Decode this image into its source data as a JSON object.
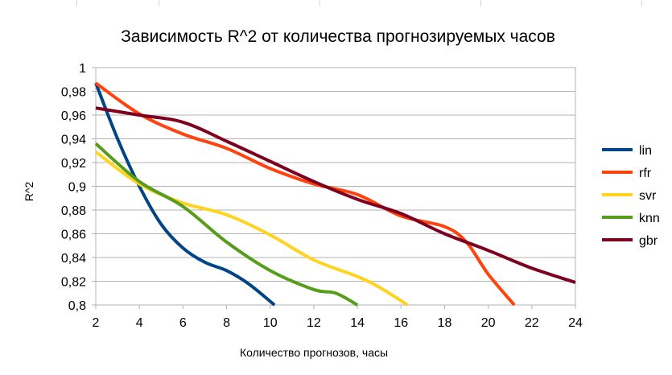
{
  "chart_data": {
    "type": "line",
    "title": "Зависимость R^2 от количества прогнозируемых часов",
    "xlabel": "Количество прогнозов, часы",
    "ylabel": "R^2",
    "xlim": [
      2,
      24
    ],
    "ylim": [
      0.8,
      1.0
    ],
    "x_ticks": [
      "2",
      "4",
      "6",
      "8",
      "10",
      "12",
      "14",
      "16",
      "18",
      "20",
      "22",
      "24"
    ],
    "y_ticks": [
      "0,8",
      "0,82",
      "0,84",
      "0,86",
      "0,88",
      "0,9",
      "0,92",
      "0,94",
      "0,96",
      "0,98",
      "1"
    ],
    "grid": "horizontal",
    "legend_position": "right",
    "series": [
      {
        "name": "lin",
        "color": "#004586",
        "x": [
          2,
          3,
          4,
          5,
          6,
          7,
          8,
          9,
          10.2
        ],
        "y": [
          0.987,
          0.94,
          0.9,
          0.868,
          0.848,
          0.836,
          0.829,
          0.818,
          0.8
        ]
      },
      {
        "name": "rfr",
        "color": "#ff420e",
        "x": [
          2,
          4,
          6,
          8,
          10,
          12,
          14,
          16,
          18,
          19,
          20,
          21.2
        ],
        "y": [
          0.987,
          0.961,
          0.944,
          0.932,
          0.915,
          0.902,
          0.893,
          0.875,
          0.866,
          0.853,
          0.826,
          0.8
        ]
      },
      {
        "name": "svr",
        "color": "#ffd320",
        "x": [
          2,
          4,
          6,
          8,
          10,
          12,
          14,
          15,
          16.3
        ],
        "y": [
          0.929,
          0.902,
          0.886,
          0.876,
          0.859,
          0.838,
          0.824,
          0.815,
          0.8
        ]
      },
      {
        "name": "knn",
        "color": "#579d1c",
        "x": [
          2,
          4,
          6,
          8,
          10,
          12,
          13,
          14
        ],
        "y": [
          0.936,
          0.904,
          0.883,
          0.853,
          0.829,
          0.813,
          0.81,
          0.8
        ]
      },
      {
        "name": "gbr",
        "color": "#7e0021",
        "x": [
          2,
          4,
          6,
          8,
          10,
          12,
          14,
          16,
          18,
          20,
          22,
          24
        ],
        "y": [
          0.966,
          0.96,
          0.954,
          0.938,
          0.921,
          0.904,
          0.889,
          0.877,
          0.86,
          0.846,
          0.831,
          0.819
        ]
      }
    ]
  }
}
